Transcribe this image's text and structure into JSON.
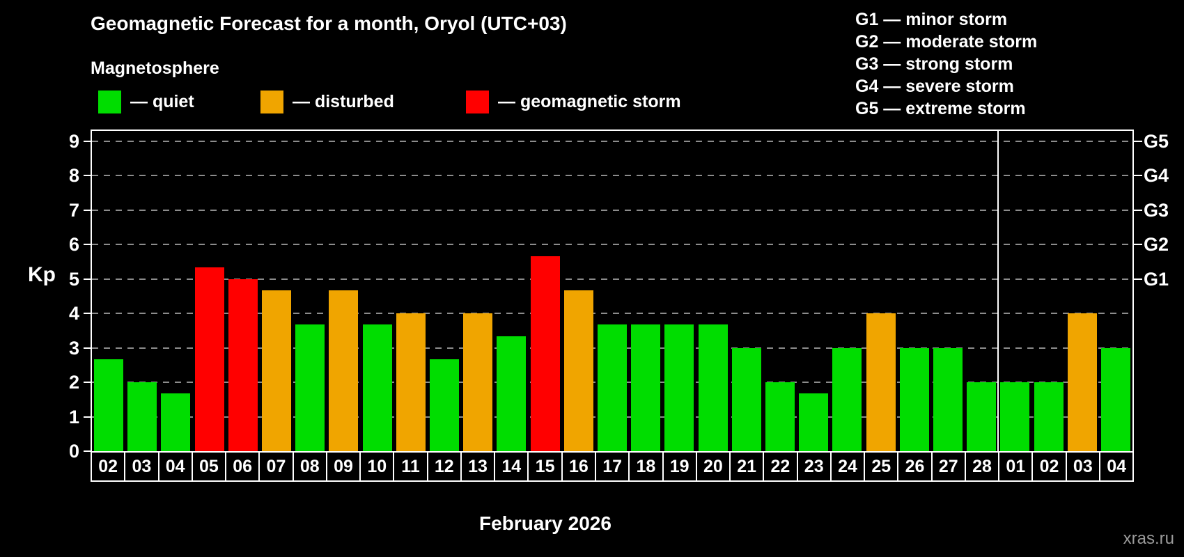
{
  "title": "Geomagnetic Forecast for a month, Oryol (UTC+03)",
  "subtitle": "Magnetosphere",
  "watermark": "xras.ru",
  "colors": {
    "quiet": "#00dd00",
    "disturbed": "#f0a500",
    "storm": "#ff0000",
    "background": "#000000",
    "axis": "#ffffff",
    "grid": "#8c8c8c"
  },
  "legend": [
    {
      "key": "quiet",
      "label": "— quiet",
      "color": "#00dd00"
    },
    {
      "key": "disturbed",
      "label": "— disturbed",
      "color": "#f0a500"
    },
    {
      "key": "storm",
      "label": "— geomagnetic storm",
      "color": "#ff0000"
    }
  ],
  "storm_scale": [
    {
      "label": "G1 — minor storm"
    },
    {
      "label": "G2 — moderate storm"
    },
    {
      "label": "G3 — strong storm"
    },
    {
      "label": "G4 — severe storm"
    },
    {
      "label": "G5 — extreme storm"
    }
  ],
  "chart_data": {
    "type": "bar",
    "title": "Geomagnetic Forecast for a month, Oryol (UTC+03)",
    "xlabel": "February 2026",
    "ylabel": "Kp",
    "ylim": [
      0,
      9.3
    ],
    "yticks": [
      0,
      1,
      2,
      3,
      4,
      5,
      6,
      7,
      8,
      9
    ],
    "grid": "dashed-horizontal",
    "legend_position": "top-left",
    "right_axis_labels": [
      {
        "label": "G5",
        "value": 9
      },
      {
        "label": "G4",
        "value": 8
      },
      {
        "label": "G3",
        "value": 7
      },
      {
        "label": "G2",
        "value": 6
      },
      {
        "label": "G1",
        "value": 5
      }
    ],
    "month_separator_after_index": 26,
    "bars": [
      {
        "day": "02",
        "kp": 2.67,
        "status": "quiet"
      },
      {
        "day": "03",
        "kp": 2.0,
        "status": "quiet"
      },
      {
        "day": "04",
        "kp": 1.67,
        "status": "quiet"
      },
      {
        "day": "05",
        "kp": 5.33,
        "status": "storm"
      },
      {
        "day": "06",
        "kp": 5.0,
        "status": "storm"
      },
      {
        "day": "07",
        "kp": 4.67,
        "status": "disturbed"
      },
      {
        "day": "08",
        "kp": 3.67,
        "status": "quiet"
      },
      {
        "day": "09",
        "kp": 4.67,
        "status": "disturbed"
      },
      {
        "day": "10",
        "kp": 3.67,
        "status": "quiet"
      },
      {
        "day": "11",
        "kp": 4.0,
        "status": "disturbed"
      },
      {
        "day": "12",
        "kp": 2.67,
        "status": "quiet"
      },
      {
        "day": "13",
        "kp": 4.0,
        "status": "disturbed"
      },
      {
        "day": "14",
        "kp": 3.33,
        "status": "quiet"
      },
      {
        "day": "15",
        "kp": 5.67,
        "status": "storm"
      },
      {
        "day": "16",
        "kp": 4.67,
        "status": "disturbed"
      },
      {
        "day": "17",
        "kp": 3.67,
        "status": "quiet"
      },
      {
        "day": "18",
        "kp": 3.67,
        "status": "quiet"
      },
      {
        "day": "19",
        "kp": 3.67,
        "status": "quiet"
      },
      {
        "day": "20",
        "kp": 3.67,
        "status": "quiet"
      },
      {
        "day": "21",
        "kp": 3.0,
        "status": "quiet"
      },
      {
        "day": "22",
        "kp": 2.0,
        "status": "quiet"
      },
      {
        "day": "23",
        "kp": 1.67,
        "status": "quiet"
      },
      {
        "day": "24",
        "kp": 3.0,
        "status": "quiet"
      },
      {
        "day": "25",
        "kp": 4.0,
        "status": "disturbed"
      },
      {
        "day": "26",
        "kp": 3.0,
        "status": "quiet"
      },
      {
        "day": "27",
        "kp": 3.0,
        "status": "quiet"
      },
      {
        "day": "28",
        "kp": 2.0,
        "status": "quiet"
      },
      {
        "day": "01",
        "kp": 2.0,
        "status": "quiet"
      },
      {
        "day": "02",
        "kp": 2.0,
        "status": "quiet"
      },
      {
        "day": "03",
        "kp": 4.0,
        "status": "disturbed"
      },
      {
        "day": "04",
        "kp": 3.0,
        "status": "quiet"
      }
    ]
  }
}
